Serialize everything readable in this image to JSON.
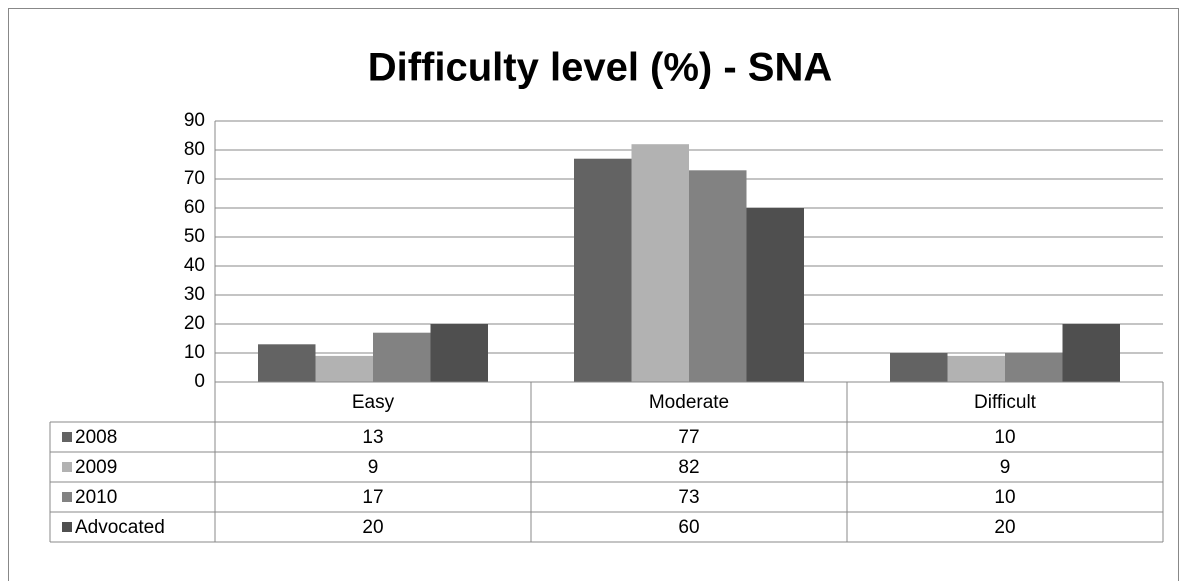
{
  "chart_data": {
    "type": "bar",
    "title": "Difficulty level (%) - SNA",
    "categories": [
      "Easy",
      "Moderate",
      "Difficult"
    ],
    "series": [
      {
        "name": "2008",
        "color": "#636363",
        "values": [
          13,
          77,
          10
        ]
      },
      {
        "name": "2009",
        "color": "#b2b2b2",
        "values": [
          9,
          82,
          9
        ]
      },
      {
        "name": "2010",
        "color": "#828282",
        "values": [
          17,
          73,
          10
        ]
      },
      {
        "name": "Advocated",
        "color": "#4f4f4f",
        "values": [
          20,
          60,
          20
        ]
      }
    ],
    "ylim": [
      0,
      90
    ],
    "yticks": [
      0,
      10,
      20,
      30,
      40,
      50,
      60,
      70,
      80,
      90
    ],
    "grid": true
  }
}
